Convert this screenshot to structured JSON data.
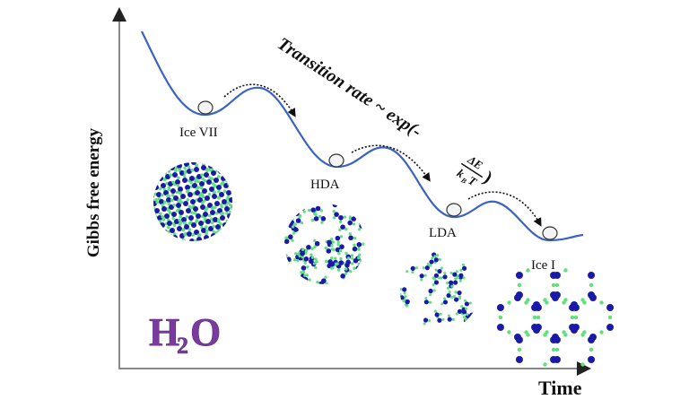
{
  "axes": {
    "y_label": "Gibbs free energy",
    "x_label": "Time"
  },
  "equation": {
    "text": "Transition rate ~ exp(-",
    "numerator": "ΔE",
    "denominator_k": "k",
    "denominator_sub": "B",
    "denominator_T": "T",
    "close": ")"
  },
  "states": [
    {
      "label": "Ice VII",
      "structure": "dense-lattice"
    },
    {
      "label": "HDA",
      "structure": "amorphous-dense"
    },
    {
      "label": "LDA",
      "structure": "amorphous-sparse"
    },
    {
      "label": "Ice I",
      "structure": "hexagonal-honeycomb"
    }
  ],
  "formula": {
    "H": "H",
    "sub": "2",
    "O": "O"
  },
  "colors": {
    "curve": "#3a63c4",
    "oxygen": "#1a1aa8",
    "hydrogen": "#5ee07a",
    "formula": "#7a3a9e"
  }
}
